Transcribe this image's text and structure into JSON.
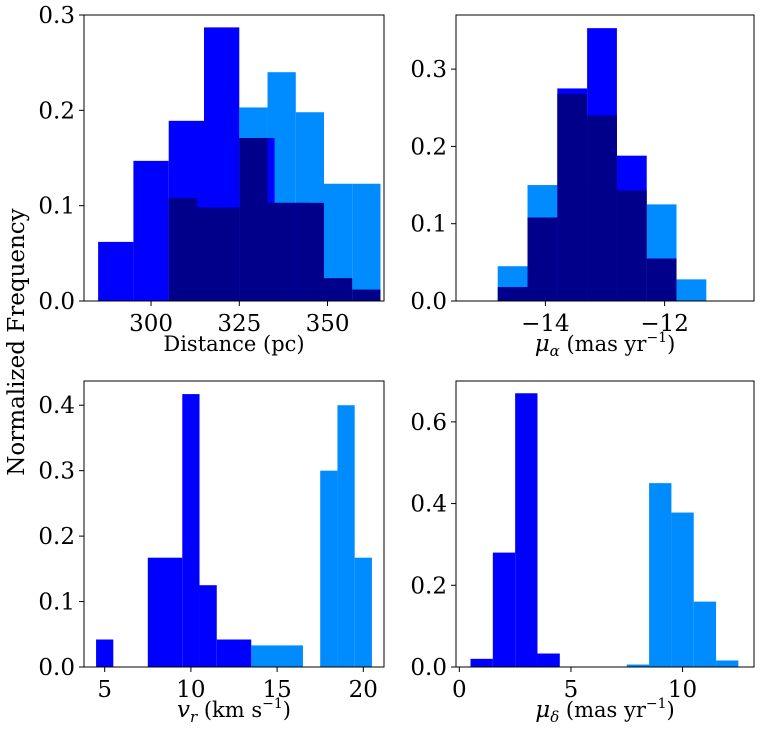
{
  "figure": {
    "ylabel": "Normalized Frequency"
  },
  "chart_data": [
    {
      "type": "bar",
      "id": "distance",
      "xlabel": "Distance (pc)",
      "ylabel": "",
      "xlim": [
        281,
        366
      ],
      "ylim": [
        0,
        0.3
      ],
      "xticks": [
        300,
        325,
        350
      ],
      "yticks": [
        0.0,
        0.1,
        0.2,
        0.3
      ],
      "ytick_labels": [
        "0.0",
        "0.1",
        "0.2",
        "0.3"
      ],
      "series": [
        {
          "color": "#008cff",
          "bins": [
            {
              "x0": 325,
              "x1": 333,
              "value": 0.203
            },
            {
              "x0": 333,
              "x1": 341,
              "value": 0.24
            },
            {
              "x0": 341,
              "x1": 349,
              "value": 0.198
            },
            {
              "x0": 349,
              "x1": 357,
              "value": 0.123
            },
            {
              "x0": 357,
              "x1": 365,
              "value": 0.123
            }
          ]
        },
        {
          "color": "#0000ff",
          "bins": [
            {
              "x0": 285,
              "x1": 295,
              "value": 0.062
            },
            {
              "x0": 295,
              "x1": 305,
              "value": 0.147
            },
            {
              "x0": 305,
              "x1": 315,
              "value": 0.189
            },
            {
              "x0": 315,
              "x1": 325,
              "value": 0.287
            },
            {
              "x0": 325,
              "x1": 335,
              "value": 0.171
            },
            {
              "x0": 335,
              "x1": 345,
              "value": 0.103
            }
          ]
        },
        {
          "color": "#00008b",
          "bins": [
            {
              "x0": 305,
              "x1": 313,
              "value": 0.108
            },
            {
              "x0": 313,
              "x1": 325,
              "value": 0.098
            },
            {
              "x0": 325,
              "x1": 333,
              "value": 0.171
            },
            {
              "x0": 333,
              "x1": 341,
              "value": 0.103
            },
            {
              "x0": 341,
              "x1": 349,
              "value": 0.103
            },
            {
              "x0": 349,
              "x1": 357,
              "value": 0.024
            },
            {
              "x0": 357,
              "x1": 365,
              "value": 0.012
            }
          ]
        }
      ]
    },
    {
      "type": "bar",
      "id": "pm_ra",
      "xlabel_main": "μ",
      "xlabel_sub": "α",
      "xlabel_rest": " (mas yr",
      "xlabel_sup": "−1",
      "xlabel_end": ")",
      "xlim": [
        -15.5,
        -10.5
      ],
      "ylim": [
        0,
        0.37
      ],
      "xticks": [
        -14,
        -12
      ],
      "xtick_labels": [
        "−14",
        "−12"
      ],
      "yticks": [
        0.0,
        0.1,
        0.2,
        0.3
      ],
      "ytick_labels": [
        "0.0",
        "0.1",
        "0.2",
        "0.3"
      ],
      "series": [
        {
          "color": "#008cff",
          "bins": [
            {
              "x0": -14.8,
              "x1": -14.3,
              "value": 0.045
            },
            {
              "x0": -14.3,
              "x1": -13.8,
              "value": 0.15
            },
            {
              "x0": -13.8,
              "x1": -13.3,
              "value": 0.15
            },
            {
              "x0": -12.3,
              "x1": -11.8,
              "value": 0.125
            },
            {
              "x0": -11.8,
              "x1": -11.3,
              "value": 0.028
            }
          ]
        },
        {
          "color": "#0000ff",
          "bins": [
            {
              "x0": -14.3,
              "x1": -13.8,
              "value": 0.108
            },
            {
              "x0": -13.8,
              "x1": -13.3,
              "value": 0.275
            },
            {
              "x0": -13.3,
              "x1": -12.8,
              "value": 0.353
            },
            {
              "x0": -12.8,
              "x1": -12.3,
              "value": 0.188
            }
          ]
        },
        {
          "color": "#00008b",
          "bins": [
            {
              "x0": -14.8,
              "x1": -14.3,
              "value": 0.018
            },
            {
              "x0": -14.3,
              "x1": -13.8,
              "value": 0.108
            },
            {
              "x0": -13.8,
              "x1": -13.3,
              "value": 0.268
            },
            {
              "x0": -13.3,
              "x1": -12.8,
              "value": 0.24
            },
            {
              "x0": -12.8,
              "x1": -12.3,
              "value": 0.143
            },
            {
              "x0": -12.3,
              "x1": -11.8,
              "value": 0.055
            }
          ]
        }
      ]
    },
    {
      "type": "bar",
      "id": "vr",
      "xlabel_main": "v",
      "xlabel_sub": "r",
      "xlabel_rest": " (km s",
      "xlabel_sup": "−1",
      "xlabel_end": ")",
      "xlim": [
        3.8,
        21.2
      ],
      "ylim": [
        0,
        0.437
      ],
      "xticks": [
        5,
        10,
        15,
        20
      ],
      "xtick_labels": [
        "5",
        "10",
        "15",
        "20"
      ],
      "yticks": [
        0.0,
        0.1,
        0.2,
        0.3,
        0.4
      ],
      "ytick_labels": [
        "0.0",
        "0.1",
        "0.2",
        "0.3",
        "0.4"
      ],
      "series": [
        {
          "color": "#008cff",
          "bins": [
            {
              "x0": 13.5,
              "x1": 16.5,
              "value": 0.033
            },
            {
              "x0": 17.5,
              "x1": 18.5,
              "value": 0.3
            },
            {
              "x0": 18.5,
              "x1": 19.5,
              "value": 0.4
            },
            {
              "x0": 19.5,
              "x1": 20.5,
              "value": 0.167
            }
          ]
        },
        {
          "color": "#0000ff",
          "bins": [
            {
              "x0": 4.5,
              "x1": 5.5,
              "value": 0.042
            },
            {
              "x0": 7.5,
              "x1": 9.5,
              "value": 0.167
            },
            {
              "x0": 9.5,
              "x1": 10.5,
              "value": 0.417
            },
            {
              "x0": 10.5,
              "x1": 11.5,
              "value": 0.125
            },
            {
              "x0": 11.5,
              "x1": 13.5,
              "value": 0.042
            }
          ]
        }
      ]
    },
    {
      "type": "bar",
      "id": "pm_dec",
      "xlabel_main": "μ",
      "xlabel_sub": "δ",
      "xlabel_rest": " (mas yr",
      "xlabel_sup": "−1",
      "xlabel_end": ")",
      "xlim": [
        -0.15,
        13.2
      ],
      "ylim": [
        0,
        0.7
      ],
      "xticks": [
        0,
        5,
        10
      ],
      "xtick_labels": [
        "0",
        "5",
        "10"
      ],
      "yticks": [
        0.0,
        0.2,
        0.4,
        0.6
      ],
      "ytick_labels": [
        "0.0",
        "0.2",
        "0.4",
        "0.6"
      ],
      "series": [
        {
          "color": "#008cff",
          "bins": [
            {
              "x0": 7.5,
              "x1": 8.5,
              "value": 0.006
            },
            {
              "x0": 8.5,
              "x1": 9.5,
              "value": 0.45
            },
            {
              "x0": 9.5,
              "x1": 10.5,
              "value": 0.378
            },
            {
              "x0": 10.5,
              "x1": 11.5,
              "value": 0.16
            },
            {
              "x0": 11.5,
              "x1": 12.5,
              "value": 0.016
            }
          ]
        },
        {
          "color": "#0000ff",
          "bins": [
            {
              "x0": 0.5,
              "x1": 1.5,
              "value": 0.02
            },
            {
              "x0": 1.5,
              "x1": 2.5,
              "value": 0.28
            },
            {
              "x0": 2.5,
              "x1": 3.5,
              "value": 0.67
            },
            {
              "x0": 3.5,
              "x1": 4.5,
              "value": 0.033
            }
          ]
        }
      ]
    }
  ]
}
